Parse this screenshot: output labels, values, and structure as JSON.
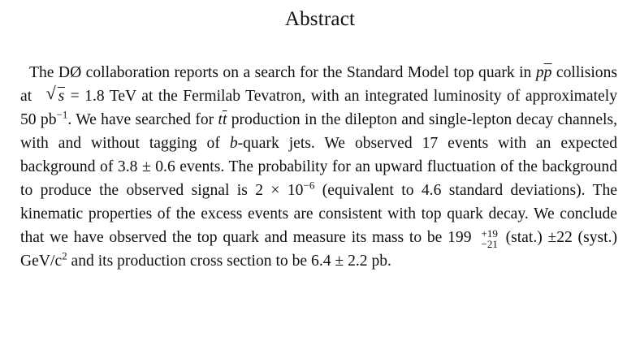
{
  "title": "Abstract",
  "abstract": {
    "s1": "The DØ collaboration reports on a search for the Standard Model top quark in ",
    "pp_p": "p",
    "pp_pbar": "p",
    "s2": " collisions at ",
    "sqrt_symbol": "√",
    "sqrt_s": "s",
    "s3": " = 1.8 TeV at the Fermilab Tevatron, with an integrated luminosity of approximately 50 pb",
    "pb_exp": "−1",
    "s4": ". We have searched for ",
    "tt_t": "t",
    "tt_tbar": "t",
    "s5": " production in the dilepton and single-lepton decay channels, with and without tagging of ",
    "b_letter": "b",
    "s6": "-quark jets. We observed 17 events with an expected background of 3.8 ± 0.6 events. The probability for an upward fluctuation of the background to pro­duce the observed signal is 2 × 10",
    "prob_exp": "−6",
    "s7": " (equivalent to 4.6 standard deviations). The kinematic properties of the excess events are consistent with top quark decay. We conclude that we have observed the top quark and measure its mass to be 199",
    "mass_up": "+19",
    "mass_down": "−21",
    "s8": " (stat.) ±22 (syst.) GeV/c",
    "c_exp": "2",
    "s9": " and its production cross section to be 6.4 ± 2.2 pb."
  }
}
